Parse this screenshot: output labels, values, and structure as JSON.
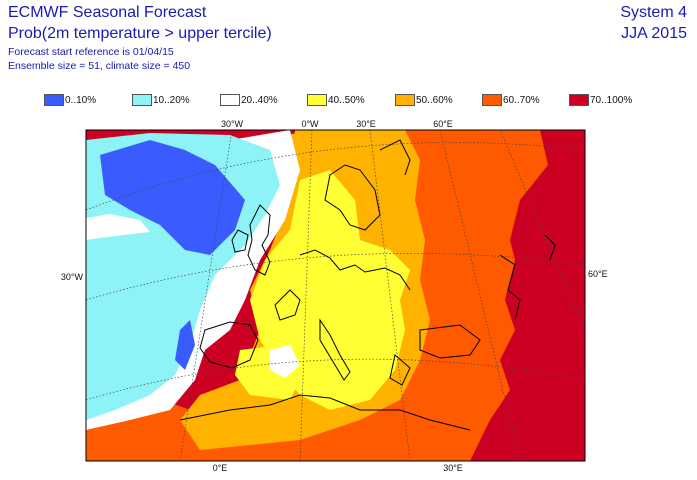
{
  "header": {
    "title": "ECMWF Seasonal Forecast",
    "subtitle": "Prob(2m temperature > upper tercile)",
    "start_ref": "Forecast start reference is 01/04/15",
    "ensemble": "Ensemble size = 51, climate size = 450",
    "system": "System 4",
    "season": "JJA 2015"
  },
  "legend": [
    {
      "label": "0..10%",
      "color": "#3a5cff"
    },
    {
      "label": "10..20%",
      "color": "#8ef3f6"
    },
    {
      "label": "20..40%",
      "color": "#ffffff"
    },
    {
      "label": "40..50%",
      "color": "#ffff33"
    },
    {
      "label": "50..60%",
      "color": "#ffb300"
    },
    {
      "label": "60..70%",
      "color": "#ff5a00"
    },
    {
      "label": "70..100%",
      "color": "#cc0022"
    }
  ],
  "axis_labels": {
    "top": [
      "30°W",
      "0°W",
      "30°E",
      "60°E"
    ],
    "left": "30°W",
    "right": "60°E",
    "bottom": [
      "0°E",
      "30°E"
    ]
  }
}
